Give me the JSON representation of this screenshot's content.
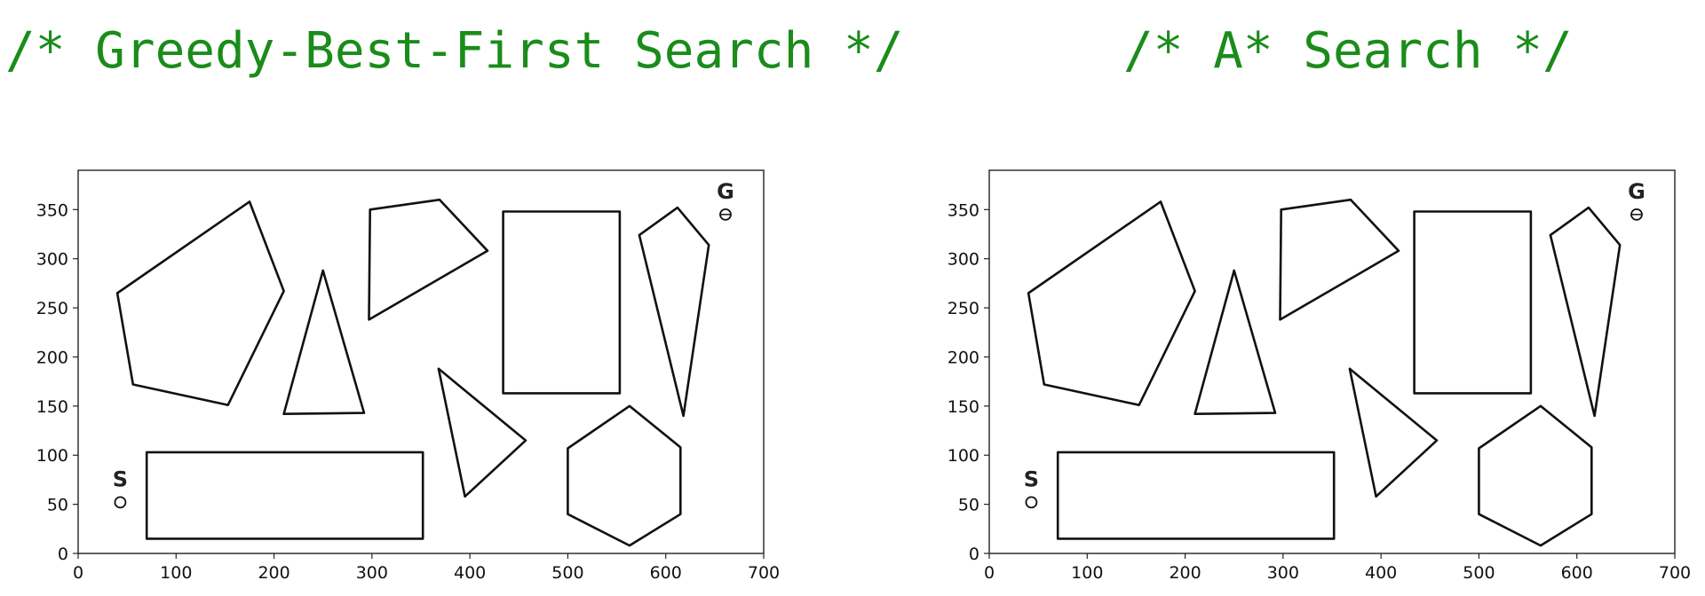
{
  "headings": {
    "left": "/* Greedy-Best-First Search */",
    "right": "/* A* Search */"
  },
  "colors": {
    "heading": "#1a8c1a",
    "obstacle_stroke": "#111111",
    "axes": "#222222"
  },
  "panels": [
    {
      "chart_data": {
        "type": "diagram",
        "xlim": [
          0,
          700
        ],
        "ylim": [
          0,
          390
        ],
        "xticks": [
          "0",
          "100",
          "200",
          "300",
          "400",
          "500",
          "600",
          "700"
        ],
        "yticks": [
          "0",
          "50",
          "100",
          "150",
          "200",
          "250",
          "300",
          "350"
        ],
        "start": {
          "label": "S",
          "x": 43,
          "y": 52
        },
        "goal": {
          "label": "G",
          "x": 661,
          "y": 345
        },
        "obstacles": [
          {
            "name": "pentagon",
            "points": [
              [
                40,
                265
              ],
              [
                56,
                172
              ],
              [
                153,
                151
              ],
              [
                210,
                267
              ],
              [
                175,
                358
              ]
            ]
          },
          {
            "name": "triangle-small",
            "points": [
              [
                210,
                142
              ],
              [
                250,
                288
              ],
              [
                292,
                143
              ]
            ]
          },
          {
            "name": "quad-top",
            "points": [
              [
                297,
                238
              ],
              [
                298,
                350
              ],
              [
                369,
                360
              ],
              [
                418,
                308
              ]
            ]
          },
          {
            "name": "rectangle-tall",
            "points": [
              [
                434,
                163
              ],
              [
                434,
                348
              ],
              [
                553,
                348
              ],
              [
                553,
                163
              ]
            ]
          },
          {
            "name": "kite",
            "points": [
              [
                573,
                324
              ],
              [
                612,
                352
              ],
              [
                644,
                314
              ],
              [
                618,
                140
              ]
            ]
          },
          {
            "name": "triangle-right",
            "points": [
              [
                368,
                188
              ],
              [
                395,
                58
              ],
              [
                457,
                115
              ]
            ]
          },
          {
            "name": "rectangle-wide",
            "points": [
              [
                70,
                15
              ],
              [
                70,
                103
              ],
              [
                352,
                103
              ],
              [
                352,
                15
              ]
            ]
          },
          {
            "name": "hexagon",
            "points": [
              [
                500,
                107
              ],
              [
                500,
                40
              ],
              [
                563,
                8
              ],
              [
                615,
                40
              ],
              [
                615,
                108
              ],
              [
                563,
                150
              ]
            ]
          }
        ]
      }
    },
    {
      "chart_data": {
        "type": "diagram",
        "xlim": [
          0,
          700
        ],
        "ylim": [
          0,
          390
        ],
        "xticks": [
          "0",
          "100",
          "200",
          "300",
          "400",
          "500",
          "600",
          "700"
        ],
        "yticks": [
          "0",
          "50",
          "100",
          "150",
          "200",
          "250",
          "300",
          "350"
        ],
        "start": {
          "label": "S",
          "x": 43,
          "y": 52
        },
        "goal": {
          "label": "G",
          "x": 661,
          "y": 345
        },
        "obstacles": [
          {
            "name": "pentagon",
            "points": [
              [
                40,
                265
              ],
              [
                56,
                172
              ],
              [
                153,
                151
              ],
              [
                210,
                267
              ],
              [
                175,
                358
              ]
            ]
          },
          {
            "name": "triangle-small",
            "points": [
              [
                210,
                142
              ],
              [
                250,
                288
              ],
              [
                292,
                143
              ]
            ]
          },
          {
            "name": "quad-top",
            "points": [
              [
                297,
                238
              ],
              [
                298,
                350
              ],
              [
                369,
                360
              ],
              [
                418,
                308
              ]
            ]
          },
          {
            "name": "rectangle-tall",
            "points": [
              [
                434,
                163
              ],
              [
                434,
                348
              ],
              [
                553,
                348
              ],
              [
                553,
                163
              ]
            ]
          },
          {
            "name": "kite",
            "points": [
              [
                573,
                324
              ],
              [
                612,
                352
              ],
              [
                644,
                314
              ],
              [
                618,
                140
              ]
            ]
          },
          {
            "name": "triangle-right",
            "points": [
              [
                368,
                188
              ],
              [
                395,
                58
              ],
              [
                457,
                115
              ]
            ]
          },
          {
            "name": "rectangle-wide",
            "points": [
              [
                70,
                15
              ],
              [
                70,
                103
              ],
              [
                352,
                103
              ],
              [
                352,
                15
              ]
            ]
          },
          {
            "name": "hexagon",
            "points": [
              [
                500,
                107
              ],
              [
                500,
                40
              ],
              [
                563,
                8
              ],
              [
                615,
                40
              ],
              [
                615,
                108
              ],
              [
                563,
                150
              ]
            ]
          }
        ]
      }
    }
  ]
}
